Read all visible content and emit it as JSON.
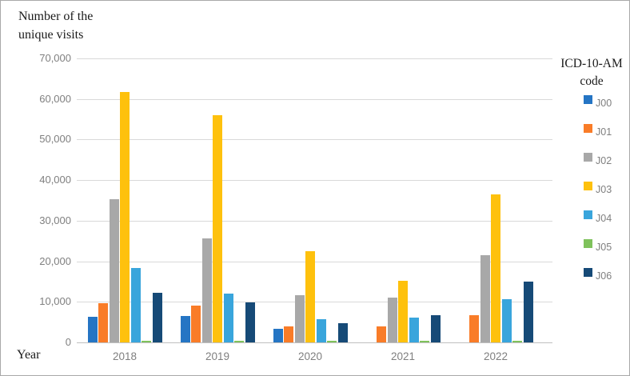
{
  "figure": {
    "title_line1": "Number of the",
    "title_line2": "unique visits",
    "x_axis_label": "Year"
  },
  "legend": {
    "title_line1": "ICD-10-AM",
    "title_line2": "code"
  },
  "chart_data": {
    "type": "bar",
    "title": "Number of the unique visits",
    "xlabel": "Year",
    "ylabel": "Number of the unique visits",
    "legend_title": "ICD-10-AM code",
    "legend_position": "right",
    "grid": true,
    "ylim": [
      0,
      70000
    ],
    "yticks": [
      0,
      10000,
      20000,
      30000,
      40000,
      50000,
      60000,
      70000
    ],
    "categories": [
      "2018",
      "2019",
      "2020",
      "2021",
      "2022"
    ],
    "series": [
      {
        "name": "J00",
        "color": "#2575c4",
        "values": [
          6400,
          6600,
          3300,
          null,
          null
        ]
      },
      {
        "name": "J01",
        "color": "#f97c28",
        "values": [
          9700,
          9000,
          4000,
          3900,
          6800
        ]
      },
      {
        "name": "J02",
        "color": "#a8a8a8",
        "values": [
          35300,
          25700,
          11600,
          11000,
          21600
        ]
      },
      {
        "name": "J03",
        "color": "#fec10d",
        "values": [
          61700,
          56100,
          22500,
          15200,
          36400
        ]
      },
      {
        "name": "J04",
        "color": "#39a5dc",
        "values": [
          18400,
          12000,
          5700,
          6200,
          10700
        ]
      },
      {
        "name": "J05",
        "color": "#7fc25c",
        "values": [
          300,
          300,
          200,
          400,
          300
        ]
      },
      {
        "name": "J06",
        "color": "#164a77",
        "values": [
          12200,
          9800,
          4800,
          6800,
          14900
        ]
      }
    ]
  }
}
